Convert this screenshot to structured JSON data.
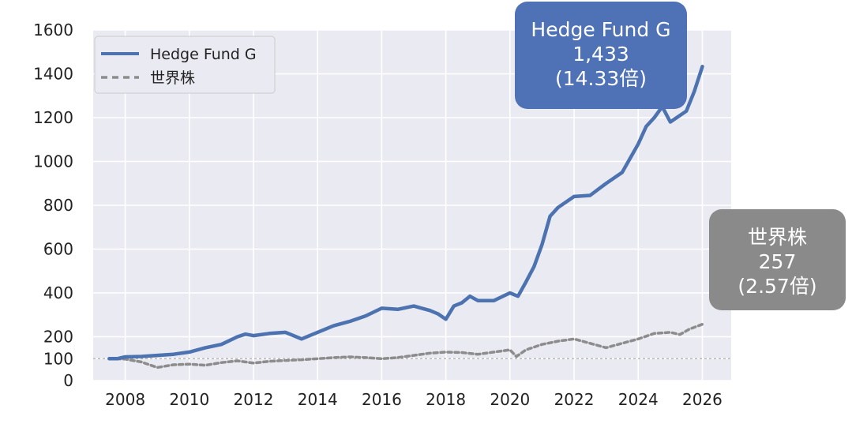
{
  "chart_data": {
    "type": "line",
    "title": "",
    "xlabel": "",
    "ylabel": "",
    "xlim": [
      2007.0,
      2026.9
    ],
    "ylim": [
      0,
      1600
    ],
    "x_ticks": [
      "2008",
      "2010",
      "2012",
      "2014",
      "2016",
      "2018",
      "2020",
      "2022",
      "2024",
      "2026"
    ],
    "y_ticks": [
      "0",
      "100",
      "200",
      "400",
      "600",
      "800",
      "1000",
      "1200",
      "1400",
      "1600"
    ],
    "grid": true,
    "legend_position": "top-left",
    "reference_line": 100,
    "series": [
      {
        "name": "Hedge Fund G",
        "color": "#4c72b0",
        "style": "solid",
        "x": [
          2007.5,
          2007.75,
          2008.0,
          2008.5,
          2009.0,
          2009.5,
          2010.0,
          2010.5,
          2011.0,
          2011.5,
          2011.75,
          2012.0,
          2012.5,
          2013.0,
          2013.5,
          2013.75,
          2014.0,
          2014.5,
          2015.0,
          2015.5,
          2016.0,
          2016.5,
          2017.0,
          2017.25,
          2017.5,
          2017.75,
          2018.0,
          2018.25,
          2018.5,
          2018.75,
          2019.0,
          2019.5,
          2020.0,
          2020.25,
          2020.5,
          2020.75,
          2021.0,
          2021.25,
          2021.5,
          2022.0,
          2022.5,
          2023.0,
          2023.5,
          2024.0,
          2024.25,
          2024.5,
          2024.75,
          2025.0,
          2025.5,
          2025.75,
          2026.0
        ],
        "values": [
          100,
          100,
          108,
          110,
          115,
          120,
          130,
          150,
          165,
          200,
          212,
          205,
          215,
          220,
          190,
          205,
          220,
          250,
          270,
          295,
          330,
          325,
          340,
          330,
          320,
          305,
          280,
          340,
          355,
          385,
          365,
          365,
          400,
          385,
          450,
          520,
          620,
          750,
          790,
          840,
          845,
          900,
          950,
          1080,
          1160,
          1200,
          1250,
          1180,
          1230,
          1320,
          1433
        ]
      },
      {
        "name": "世界株",
        "color": "#8c8c8c",
        "style": "dashed",
        "x": [
          2007.5,
          2008.0,
          2008.5,
          2009.0,
          2009.5,
          2010.0,
          2010.5,
          2011.0,
          2011.5,
          2012.0,
          2012.5,
          2013.0,
          2013.5,
          2014.0,
          2014.5,
          2015.0,
          2015.5,
          2016.0,
          2016.5,
          2017.0,
          2017.5,
          2018.0,
          2018.5,
          2019.0,
          2019.5,
          2020.0,
          2020.2,
          2020.5,
          2021.0,
          2021.5,
          2022.0,
          2022.5,
          2023.0,
          2023.5,
          2024.0,
          2024.5,
          2025.0,
          2025.3,
          2025.6,
          2026.0
        ],
        "values": [
          100,
          98,
          85,
          60,
          72,
          75,
          70,
          82,
          90,
          80,
          88,
          92,
          95,
          100,
          105,
          108,
          105,
          100,
          105,
          115,
          125,
          130,
          128,
          120,
          130,
          140,
          110,
          140,
          165,
          180,
          190,
          170,
          150,
          170,
          190,
          215,
          220,
          210,
          235,
          257
        ]
      }
    ],
    "annotations": [
      {
        "name": "Hedge Fund G",
        "value": "1,433",
        "multiple": "(14.33倍)"
      },
      {
        "name": "世界株",
        "value": "257",
        "multiple": "(2.57倍)"
      }
    ]
  }
}
